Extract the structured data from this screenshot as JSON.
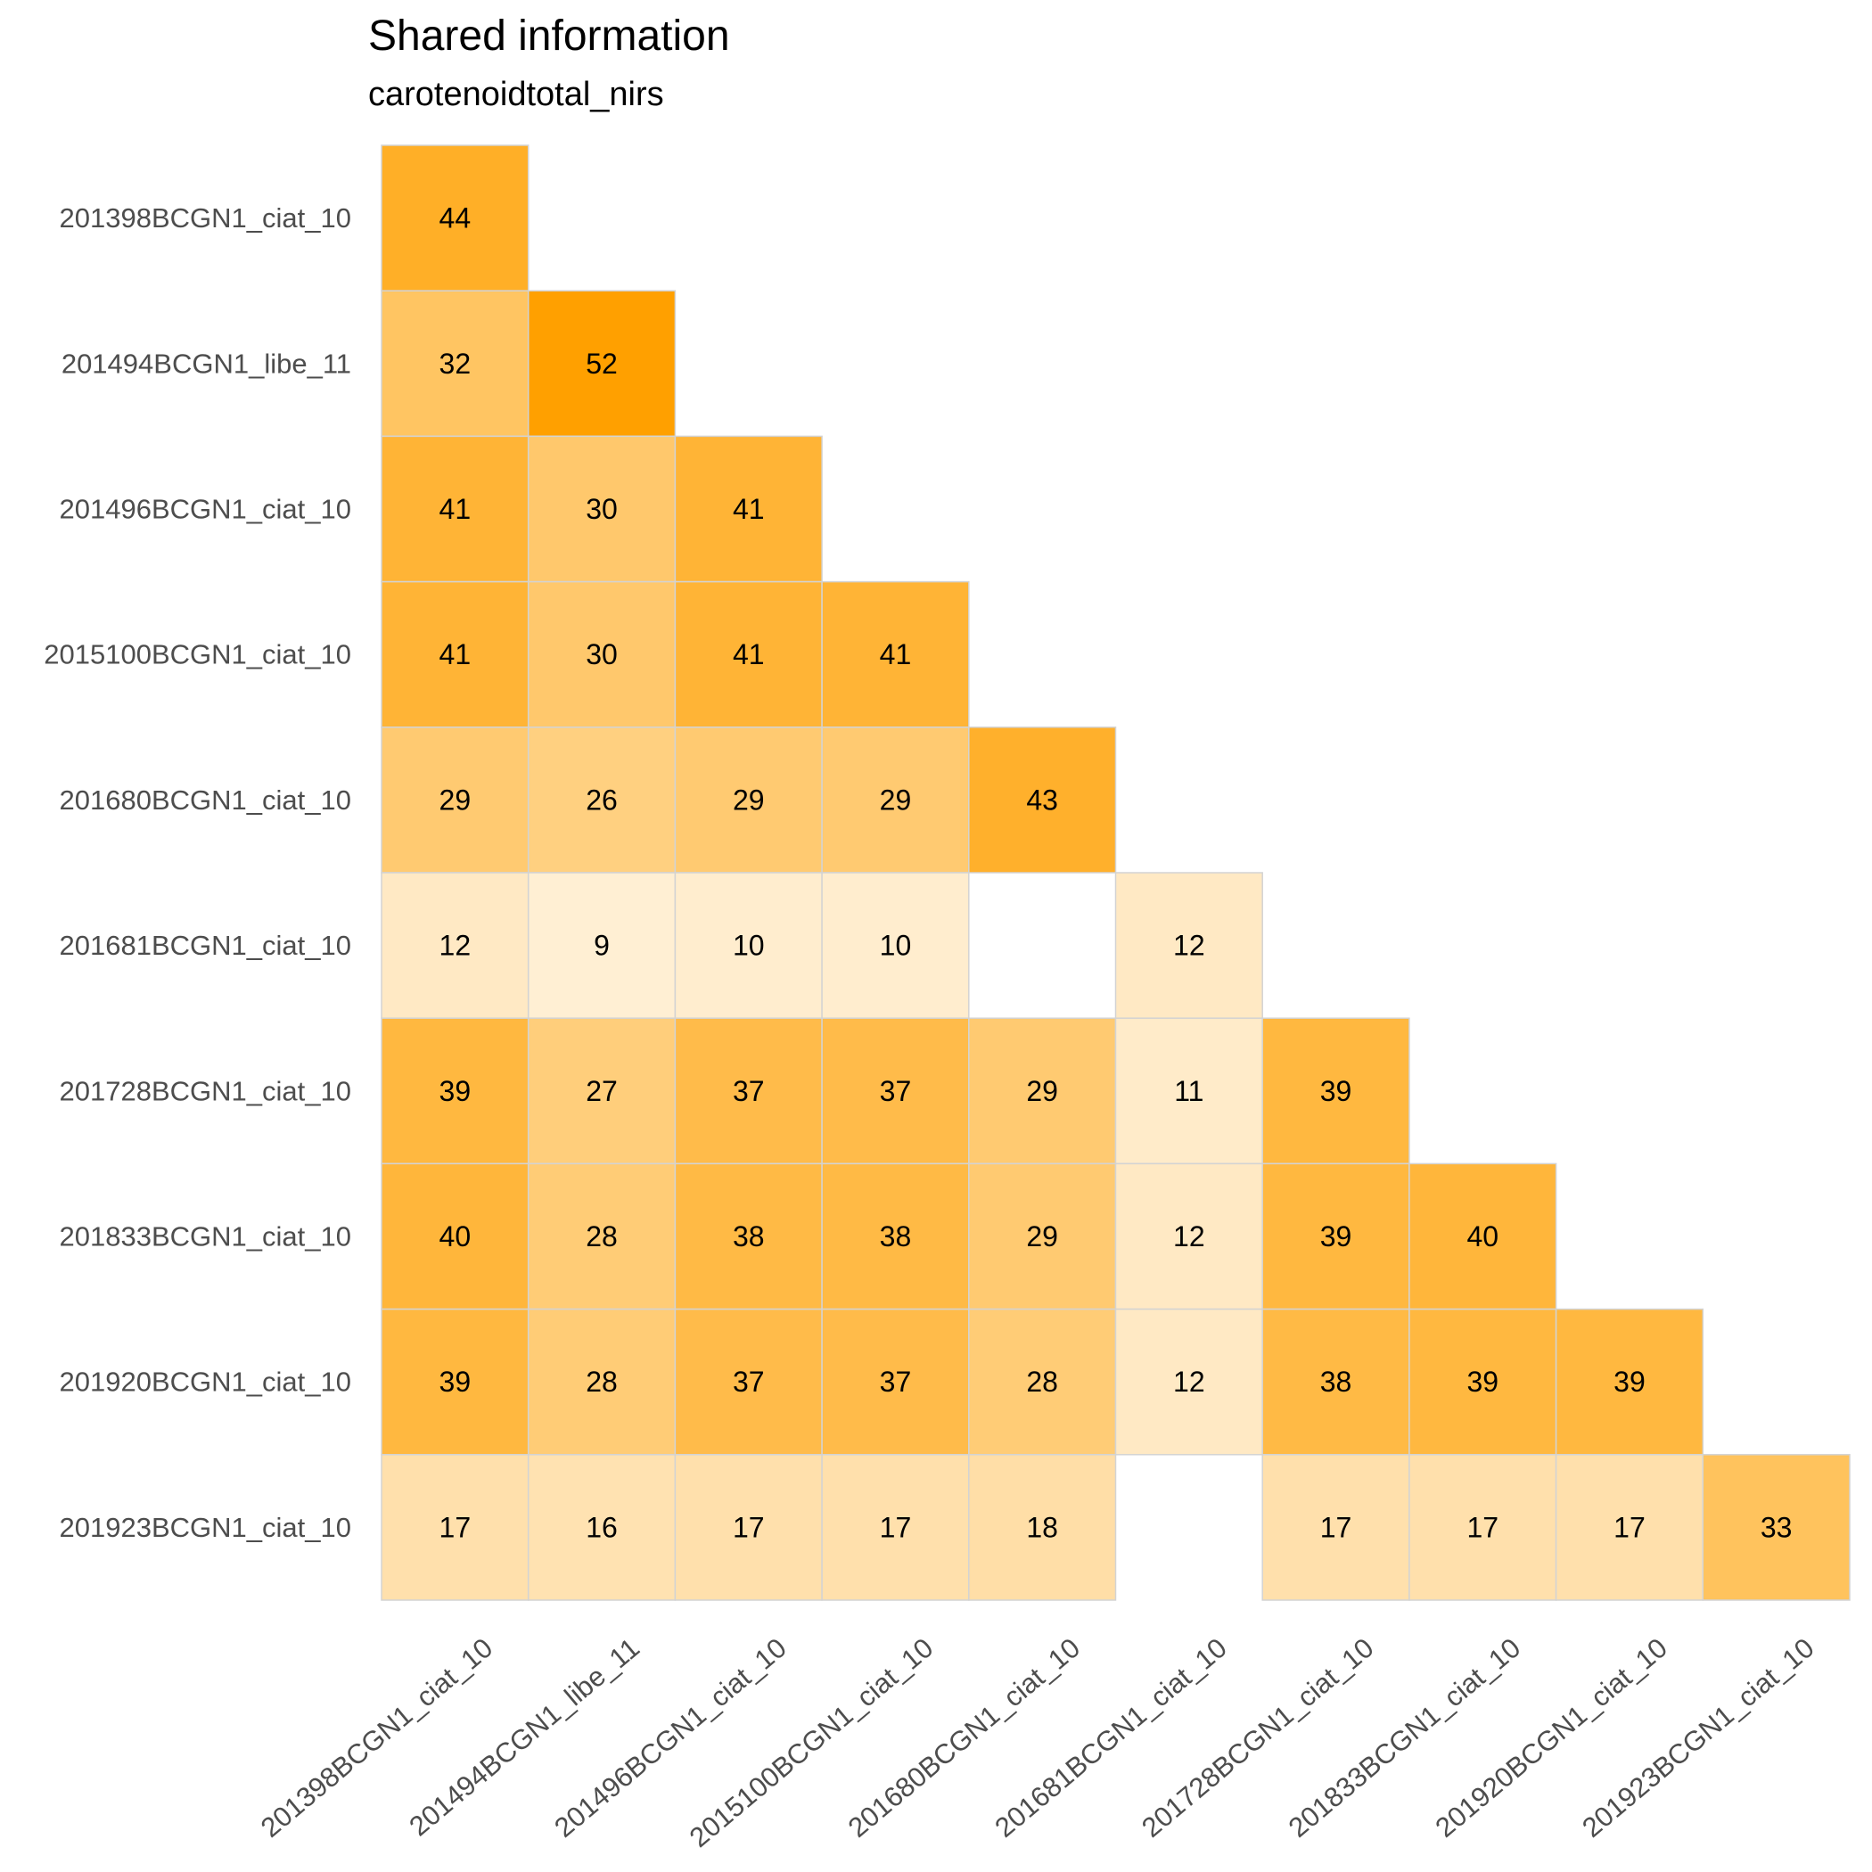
{
  "chart_data": {
    "type": "heatmap",
    "title": "Shared information",
    "subtitle": "carotenoidtotal_nirs",
    "xlabel": "",
    "ylabel": "",
    "x_categories": [
      "201398BCGN1_ciat_10",
      "201494BCGN1_libe_11",
      "201496BCGN1_ciat_10",
      "2015100BCGN1_ciat_10",
      "201680BCGN1_ciat_10",
      "201681BCGN1_ciat_10",
      "201728BCGN1_ciat_10",
      "201833BCGN1_ciat_10",
      "201920BCGN1_ciat_10",
      "201923BCGN1_ciat_10"
    ],
    "y_categories": [
      "201398BCGN1_ciat_10",
      "201494BCGN1_libe_11",
      "201496BCGN1_ciat_10",
      "2015100BCGN1_ciat_10",
      "201680BCGN1_ciat_10",
      "201681BCGN1_ciat_10",
      "201728BCGN1_ciat_10",
      "201833BCGN1_ciat_10",
      "201920BCGN1_ciat_10",
      "201923BCGN1_ciat_10"
    ],
    "values": [
      [
        44,
        null,
        null,
        null,
        null,
        null,
        null,
        null,
        null,
        null
      ],
      [
        32,
        52,
        null,
        null,
        null,
        null,
        null,
        null,
        null,
        null
      ],
      [
        41,
        30,
        41,
        null,
        null,
        null,
        null,
        null,
        null,
        null
      ],
      [
        41,
        30,
        41,
        41,
        null,
        null,
        null,
        null,
        null,
        null
      ],
      [
        29,
        26,
        29,
        29,
        43,
        null,
        null,
        null,
        null,
        null
      ],
      [
        12,
        9,
        10,
        10,
        null,
        12,
        null,
        null,
        null,
        null
      ],
      [
        39,
        27,
        37,
        37,
        29,
        11,
        39,
        null,
        null,
        null
      ],
      [
        40,
        28,
        38,
        38,
        29,
        12,
        39,
        40,
        null,
        null
      ],
      [
        39,
        28,
        37,
        37,
        28,
        12,
        38,
        39,
        39,
        null
      ],
      [
        17,
        16,
        17,
        17,
        18,
        null,
        17,
        17,
        17,
        33
      ]
    ],
    "color_scale": {
      "low_color": "#ffffff",
      "high_color": "#ffa000",
      "min": 0,
      "max": 52
    },
    "cell_border_color": "#d3d3d3",
    "legend": "none",
    "grid": false
  }
}
